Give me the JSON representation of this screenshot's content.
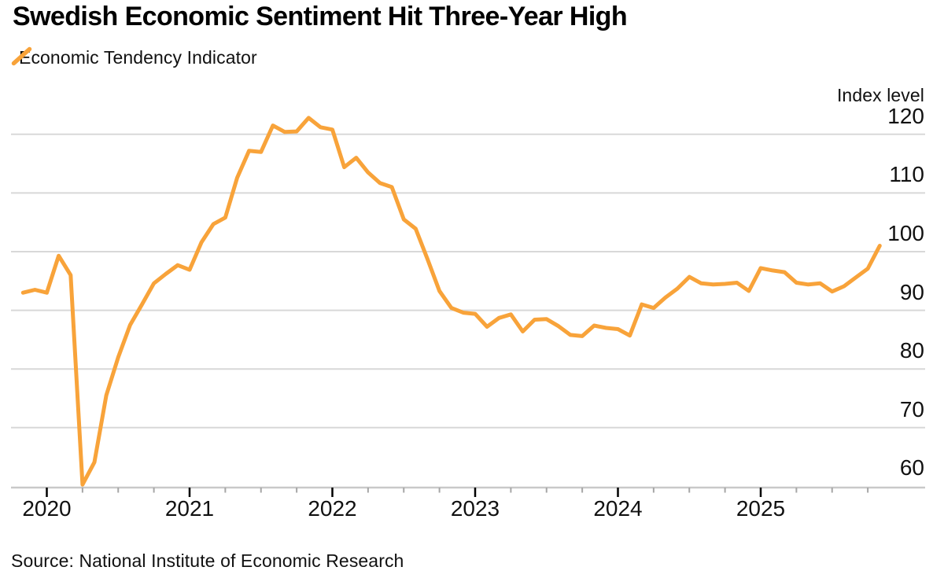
{
  "header": {
    "title": "Swedish Economic Sentiment Hit Three-Year High",
    "legend": {
      "label": "Economic Tendency Indicator"
    }
  },
  "colors": {
    "line": "#F8A33A",
    "gridline": "#D8D8D8",
    "axis_line": "#C9C9C9",
    "major_tick": "#000000",
    "minor_tick": "#A6A6A6",
    "text": "#111111",
    "background": "#FFFFFF"
  },
  "chart_data": {
    "type": "line",
    "title": "Swedish Economic Sentiment Hit Three-Year High",
    "ylabel": "Index level",
    "xlabel": "",
    "grid": true,
    "legend_position": "top-left",
    "y_axis_side": "right",
    "y_ticks": [
      120,
      110,
      100,
      90,
      80,
      70,
      60
    ],
    "x_ticks": [
      2020,
      2021,
      2022,
      2023,
      2024,
      2025
    ],
    "ylim": [
      59,
      123
    ],
    "series": [
      {
        "name": "Economic Tendency Indicator",
        "color": "#F8A33A",
        "frequency": "monthly",
        "start": "2019-11",
        "end": "2025-11",
        "values": [
          93.0,
          93.5,
          93.0,
          99.3,
          96.0,
          60.3,
          64.1,
          75.5,
          82.0,
          87.5,
          91.0,
          94.6,
          96.2,
          97.7,
          96.9,
          101.6,
          104.7,
          105.8,
          112.6,
          117.2,
          117.0,
          121.5,
          120.4,
          120.5,
          122.8,
          121.2,
          120.8,
          114.4,
          116.0,
          113.5,
          111.7,
          111.0,
          105.5,
          103.9,
          98.7,
          93.3,
          90.4,
          89.6,
          89.4,
          87.2,
          88.7,
          89.3,
          86.4,
          88.4,
          88.5,
          87.3,
          85.8,
          85.6,
          87.4,
          87.0,
          86.8,
          85.7,
          91.0,
          90.4,
          92.2,
          93.7,
          95.7,
          94.6,
          94.4,
          94.5,
          94.7,
          93.3,
          97.2,
          96.8,
          96.5,
          94.7,
          94.4,
          94.6,
          93.2,
          94.1,
          95.6,
          97.1,
          101.0
        ]
      }
    ]
  },
  "footer": {
    "source": "Source: National Institute of Economic Research"
  }
}
